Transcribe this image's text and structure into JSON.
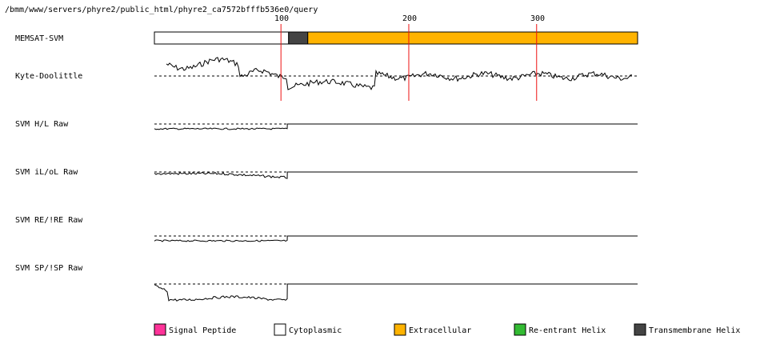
{
  "header": {
    "path": "/bmm/www/servers/phyre2/public_html/phyre2_ca7572bfffb536e0/query"
  },
  "ruler": {
    "ticks": [
      {
        "label": "100",
        "value": 100
      },
      {
        "label": "200",
        "value": 200
      },
      {
        "label": "300",
        "value": 300
      }
    ]
  },
  "sequence_length": 378,
  "tracks": {
    "memsat": {
      "label": "MEMSAT-SVM",
      "segments": [
        {
          "type": "cytoplasmic",
          "start": 1,
          "end": 105
        },
        {
          "type": "transmembrane",
          "start": 106,
          "end": 120
        },
        {
          "type": "extracellular",
          "start": 121,
          "end": 378
        }
      ]
    },
    "kyte": {
      "label": "Kyte-Doolittle"
    },
    "svm_hl": {
      "label": "SVM H/L Raw"
    },
    "svm_iloL": {
      "label": "SVM iL/oL Raw"
    },
    "svm_re": {
      "label": "SVM RE/!RE Raw"
    },
    "svm_sp": {
      "label": "SVM SP/!SP Raw"
    }
  },
  "legend": [
    {
      "key": "signal_peptide",
      "label": "Signal Peptide",
      "color": "#ff3399"
    },
    {
      "key": "cytoplasmic",
      "label": "Cytoplasmic",
      "color": "#ffffff"
    },
    {
      "key": "extracellular",
      "label": "Extracellular",
      "color": "#ffb300"
    },
    {
      "key": "reentrant",
      "label": "Re-entrant Helix",
      "color": "#33bb33"
    },
    {
      "key": "transmembrane",
      "label": "Transmembrane Helix",
      "color": "#444444"
    }
  ],
  "colors": {
    "ruler_line": "#ee1111",
    "cytoplasmic": "#ffffff",
    "transmembrane": "#444444",
    "extracellular": "#ffb300",
    "trace": "#000000"
  }
}
